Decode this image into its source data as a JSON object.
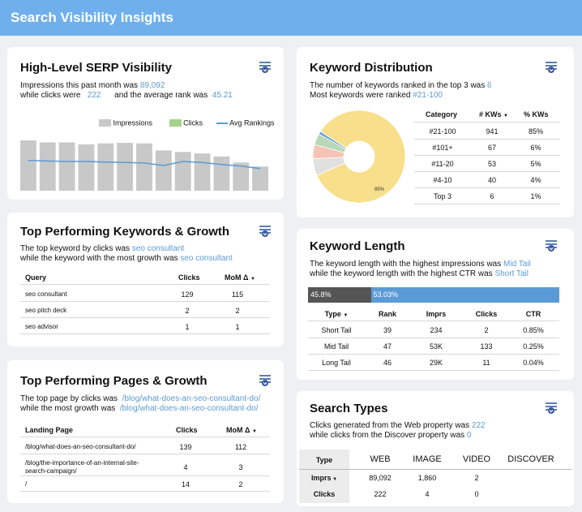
{
  "header": {
    "title": "Search Visibility Insights"
  },
  "serp": {
    "title": "High-Level SERP Visibility",
    "line1_pre": "Impressions this past month was",
    "impressions": "89,092",
    "line2_pre": "while clicks were",
    "clicks": "222",
    "line2_mid": "and the average rank was",
    "avg_rank": "45.21",
    "legend": {
      "impressions": "Impressions",
      "clicks": "Clicks",
      "avg": "Avg Rankings"
    }
  },
  "kw_dist": {
    "title": "Keyword Distribution",
    "line1_pre": "The number of keywords ranked in the top 3 was",
    "top3_count": "6",
    "line2_pre": "Most keywords were ranked",
    "most_rank": "#21-100",
    "pie_label": "85%",
    "headers": {
      "category": "Category",
      "kws": "# KWs",
      "pct": "% KWs"
    },
    "rows": [
      {
        "category": "#21-100",
        "kws": "941",
        "pct": "85%"
      },
      {
        "category": "#101+",
        "kws": "67",
        "pct": "6%"
      },
      {
        "category": "#11-20",
        "kws": "53",
        "pct": "5%"
      },
      {
        "category": "#4-10",
        "kws": "40",
        "pct": "4%"
      },
      {
        "category": "Top 3",
        "kws": "6",
        "pct": "1%"
      }
    ]
  },
  "top_kw": {
    "title": "Top Performing Keywords & Growth",
    "line1_pre": "The top keyword by clicks was",
    "top_keyword": "seo consultant",
    "line2_pre": "while the keyword with the most growth was",
    "growth_keyword": "seo consultant",
    "headers": {
      "query": "Query",
      "clicks": "Clicks",
      "mom": "MoM Δ"
    },
    "rows": [
      {
        "query": "seo consultant",
        "clicks": "129",
        "mom": "115"
      },
      {
        "query": "seo pitch deck",
        "clicks": "2",
        "mom": "2"
      },
      {
        "query": "seo advisor",
        "clicks": "1",
        "mom": "1"
      }
    ]
  },
  "kw_length": {
    "title": "Keyword Length",
    "line1_pre": "The keyword length with the highest impressions was",
    "highest_impr": "Mid Tail",
    "line2_pre": "while the keyword length with the highest CTR was",
    "highest_ctr": "Short Tail",
    "bar_left_label": "45.8%",
    "bar_right_label": "53.03%",
    "bar_left_fraction": 0.25,
    "headers": {
      "type": "Type",
      "rank": "Rank",
      "imprs": "Imprs",
      "clicks": "Clicks",
      "ctr": "CTR"
    },
    "rows": [
      {
        "type": "Short Tail",
        "rank": "39",
        "imprs": "234",
        "clicks": "2",
        "ctr": "0.85%"
      },
      {
        "type": "Mid Tail",
        "rank": "47",
        "imprs": "53K",
        "clicks": "133",
        "ctr": "0.25%"
      },
      {
        "type": "Long Tail",
        "rank": "46",
        "imprs": "29K",
        "clicks": "11",
        "ctr": "0.04%"
      }
    ]
  },
  "top_pages": {
    "title": "Top Performing Pages & Growth",
    "line1_pre": "The top page by clicks was",
    "top_page": "/blog/what-does-an-seo-consultant-do/",
    "line2_pre": "while the most growth was",
    "growth_page": "/blog/what-does-an-seo-consultant-do/",
    "headers": {
      "page": "Landing Page",
      "clicks": "Clicks",
      "mom": "MoM Δ"
    },
    "rows": [
      {
        "page1": "/blog/what-does-an-seo-consultant-do/",
        "page2": "",
        "clicks": "139",
        "mom": "112"
      },
      {
        "page1": "/blog/the-importance-of-an-internal-site-",
        "page2": "search-campaign/",
        "clicks": "4",
        "mom": "3"
      },
      {
        "page1": "/",
        "page2": "",
        "clicks": "14",
        "mom": "2"
      }
    ]
  },
  "search_types": {
    "title": "Search Types",
    "line1_pre": "Clicks generated from the Web property was",
    "web_clicks": "222",
    "line2_pre": "while clicks from the Discover property was",
    "discover_clicks": "0",
    "headers": {
      "type": "Type",
      "web": "WEB",
      "image": "IMAGE",
      "video": "VIDEO",
      "discover": "DISCOVER"
    },
    "rows": [
      {
        "label": "Imprs",
        "web": "89,092",
        "image": "1,860",
        "video": "2",
        "discover": ""
      },
      {
        "label": "Clicks",
        "web": "222",
        "image": "4",
        "video": "0",
        "discover": ""
      }
    ]
  },
  "chart_data": [
    {
      "type": "bar",
      "title": "",
      "series": [
        {
          "name": "Impressions",
          "values": [
            100,
            96,
            96,
            92,
            94,
            95,
            94,
            80,
            77,
            74,
            68,
            56,
            48
          ]
        },
        {
          "name": "Clicks",
          "values": []
        },
        {
          "name": "Avg Rankings",
          "values": [
            60,
            59,
            58,
            58,
            57,
            56,
            55,
            50,
            58,
            56,
            52,
            49,
            44
          ]
        }
      ],
      "ylim": [
        0,
        100
      ],
      "legend": "top-right",
      "colors": {
        "Impressions": "#c8c8c8",
        "Clicks": "#a8d08d",
        "Avg Rankings": "#5b9bd5"
      }
    },
    {
      "type": "pie",
      "categories": [
        "#21-100",
        "#101+",
        "#11-20",
        "#4-10",
        "Top 3"
      ],
      "values": [
        85,
        6,
        5,
        4,
        1
      ],
      "colors": [
        "#f8df8b",
        "#e0e0e0",
        "#f6c4b5",
        "#b8d8b8",
        "#5b9bd5"
      ]
    }
  ]
}
